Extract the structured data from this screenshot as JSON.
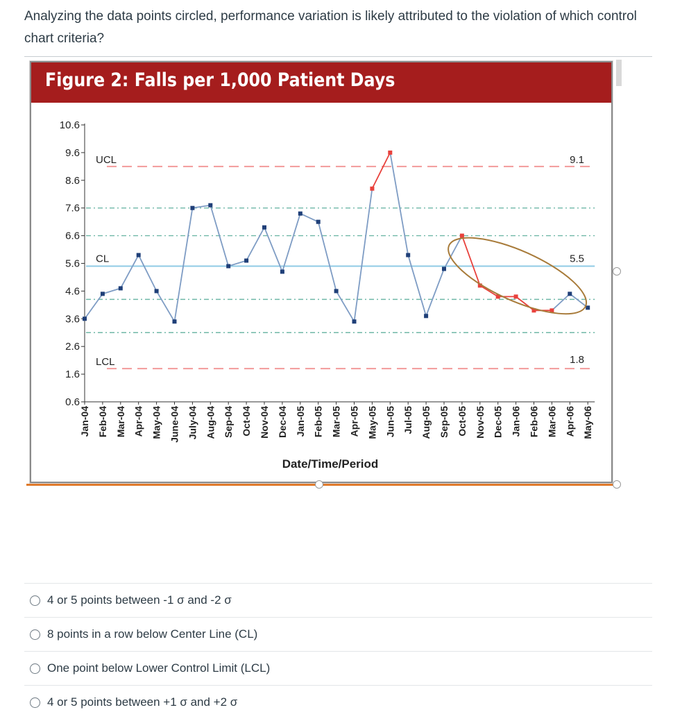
{
  "question": "Analyzing the data points circled, performance variation is likely attributed to the violation of which control chart criteria?",
  "figure_title": "Figure 2: Falls per 1,000 Patient Days",
  "options": [
    "4 or 5 points between -1 σ and -2 σ",
    "8 points in a row below Center Line (CL)",
    "One point below Lower Control Limit (LCL)",
    "4 or 5 points between +1 σ and +2 σ"
  ],
  "colors": {
    "title_bar": "#a51d1d",
    "normal_point": "#1f3f78",
    "flagged_point": "#e8413c",
    "line": "#7e9cc4",
    "control_line": "#f39a9a",
    "center_line": "#8fcbe5",
    "sigma_line": "#6fb7a7",
    "circle": "#a87b3a"
  },
  "chart_data": {
    "type": "line",
    "title": "Figure 2: Falls per 1,000 Patient Days",
    "xlabel": "Date/Time/Period",
    "ylabel": "",
    "ylim": [
      0.6,
      10.6
    ],
    "yticks": [
      10.6,
      9.6,
      8.6,
      7.6,
      6.6,
      5.6,
      4.6,
      3.6,
      2.6,
      1.6,
      0.6
    ],
    "categories": [
      "Jan-04",
      "Feb-04",
      "Mar-04",
      "Apr-04",
      "May-04",
      "June-04",
      "July-04",
      "Aug-04",
      "Sep-04",
      "Oct-04",
      "Nov-04",
      "Dec-04",
      "Jan-05",
      "Feb-05",
      "Mar-05",
      "Apr-05",
      "May-05",
      "Jun-05",
      "Jul-05",
      "Aug-05",
      "Sep-05",
      "Oct-05",
      "Nov-05",
      "Dec-05",
      "Jan-06",
      "Feb-06",
      "Mar-06",
      "Apr-06",
      "May-06"
    ],
    "values": [
      3.6,
      4.5,
      4.7,
      5.9,
      4.6,
      3.5,
      7.6,
      7.7,
      5.5,
      5.7,
      6.9,
      5.3,
      7.4,
      7.1,
      4.6,
      3.5,
      8.3,
      9.6,
      5.9,
      3.7,
      5.4,
      6.6,
      4.8,
      4.4,
      4.4,
      3.9,
      3.9,
      4.5,
      4.0
    ],
    "flagged": [
      16,
      17,
      21,
      22,
      23,
      24,
      25,
      26
    ],
    "circled_range": [
      21,
      27
    ],
    "control_lines": {
      "UCL": {
        "label": "UCL",
        "value": 9.1,
        "value_label": "9.1"
      },
      "CL": {
        "label": "CL",
        "value": 5.5,
        "value_label": "5.5"
      },
      "LCL": {
        "label": "LCL",
        "value": 1.8,
        "value_label": "1.8"
      }
    },
    "sigma_lines": [
      7.6,
      6.6,
      4.3,
      3.1
    ],
    "grid": false,
    "legend": "none"
  }
}
